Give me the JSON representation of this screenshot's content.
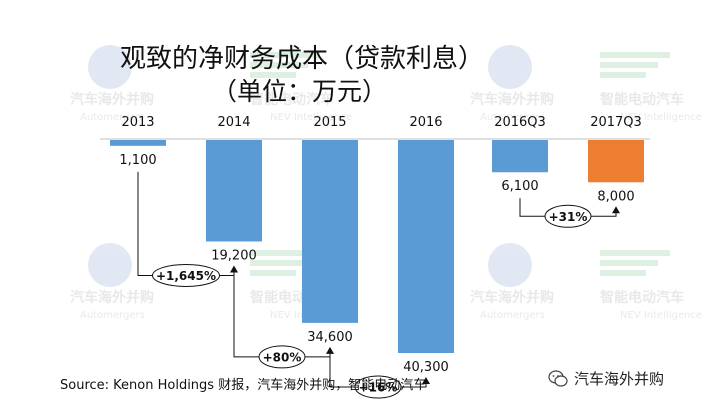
{
  "header": {
    "title": "观致的净财务成本（贷款利息）",
    "subtitle": "（单位：万元）"
  },
  "footer": {
    "source": "Source: Kenon Holdings 财报，汽车海外并购，智能电动汽车",
    "watermark": "汽车海外并购",
    "watermark_icon": "wechat-icon"
  },
  "background_logos": [
    {
      "icon": "globe-icon",
      "text": "汽车海外并购",
      "subtext": "Automergers"
    },
    {
      "icon": "green-stripes-icon",
      "text": "智能电动汽车",
      "subtext": "NEV Intelligence"
    }
  ],
  "colors": {
    "blue": "#5b9bd5",
    "orange": "#ed7d31",
    "axis": "#bfbfbf"
  },
  "chart_data": {
    "type": "bar",
    "title": "观致的净财务成本（贷款利息）",
    "subtitle": "（单位：万元）",
    "categories": [
      "2013",
      "2014",
      "2015",
      "2016",
      "2016Q3",
      "2017Q3"
    ],
    "values": [
      1100,
      19200,
      34600,
      40300,
      6100,
      8000
    ],
    "value_labels": [
      "1,100",
      "19,200",
      "34,600",
      "40,300",
      "6,100",
      "8,000"
    ],
    "bar_colors": [
      "#5b9bd5",
      "#5b9bd5",
      "#5b9bd5",
      "#5b9bd5",
      "#5b9bd5",
      "#ed7d31"
    ],
    "direction": "downward",
    "ylim": [
      0,
      42000
    ],
    "grid": false,
    "legend": "none",
    "annotations": [
      {
        "from": "2013",
        "to": "2014",
        "text": "+1,645%"
      },
      {
        "from": "2014",
        "to": "2015",
        "text": "+80%"
      },
      {
        "from": "2015",
        "to": "2016",
        "text": "+16%"
      },
      {
        "from": "2016Q3",
        "to": "2017Q3",
        "text": "+31%"
      }
    ]
  }
}
